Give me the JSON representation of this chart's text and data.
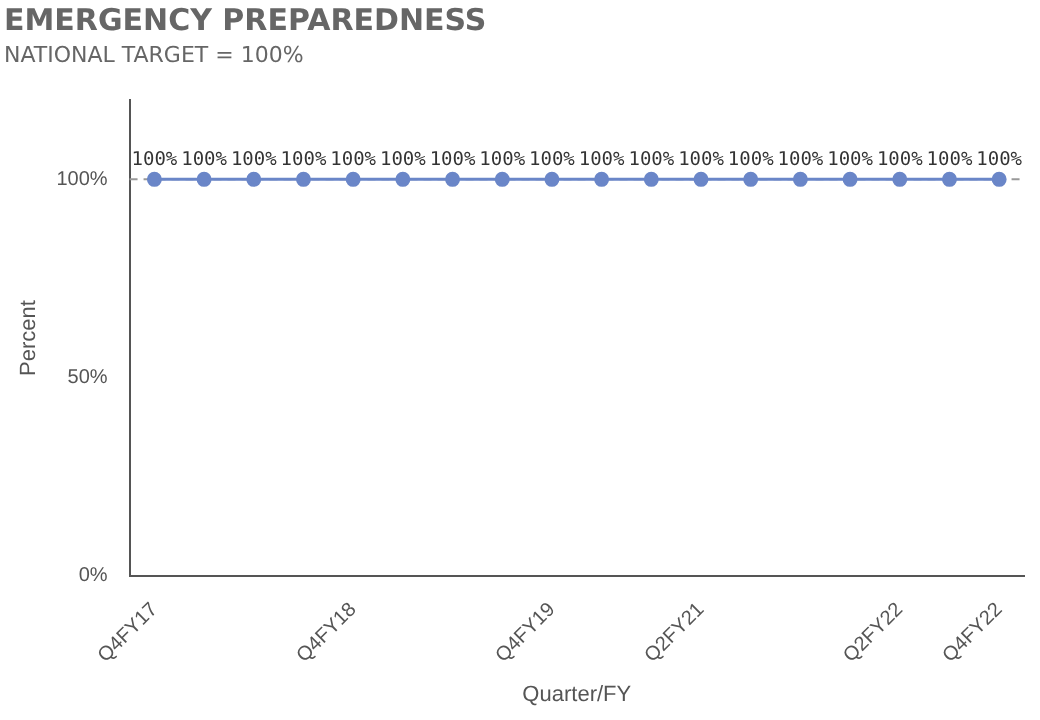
{
  "chart_data": {
    "type": "line",
    "title": "EMERGENCY PREPAREDNESS",
    "subtitle": "NATIONAL TARGET = 100%",
    "xlabel": "Quarter/FY",
    "ylabel": "Percent",
    "categories": [
      "Q4FY17",
      null,
      null,
      null,
      "Q4FY18",
      null,
      null,
      null,
      "Q4FY19",
      null,
      null,
      "Q2FY21",
      null,
      null,
      null,
      "Q2FY22",
      null,
      "Q4FY22"
    ],
    "series": [
      {
        "color": "#6a86c8",
        "values": [
          100,
          100,
          100,
          100,
          100,
          100,
          100,
          100,
          100,
          100,
          100,
          100,
          100,
          100,
          100,
          100,
          100,
          100
        ],
        "value_labels": [
          "100%",
          "100%",
          "100%",
          "100%",
          "100%",
          "100%",
          "100%",
          "100%",
          "100%",
          "100%",
          "100%",
          "100%",
          "100%",
          "100%",
          "100%",
          "100%",
          "100%",
          "100%"
        ]
      }
    ],
    "ylim": [
      0,
      120
    ],
    "yticks": [
      {
        "value": 0,
        "label": "0%"
      },
      {
        "value": 50,
        "label": "50%"
      },
      {
        "value": 100,
        "label": "100%"
      }
    ],
    "ref_lines": [
      {
        "axis": "y",
        "value": 100,
        "color": "#999999",
        "line_style": "dashed"
      }
    ],
    "marker": "circle",
    "grid": false,
    "legend": false
  }
}
